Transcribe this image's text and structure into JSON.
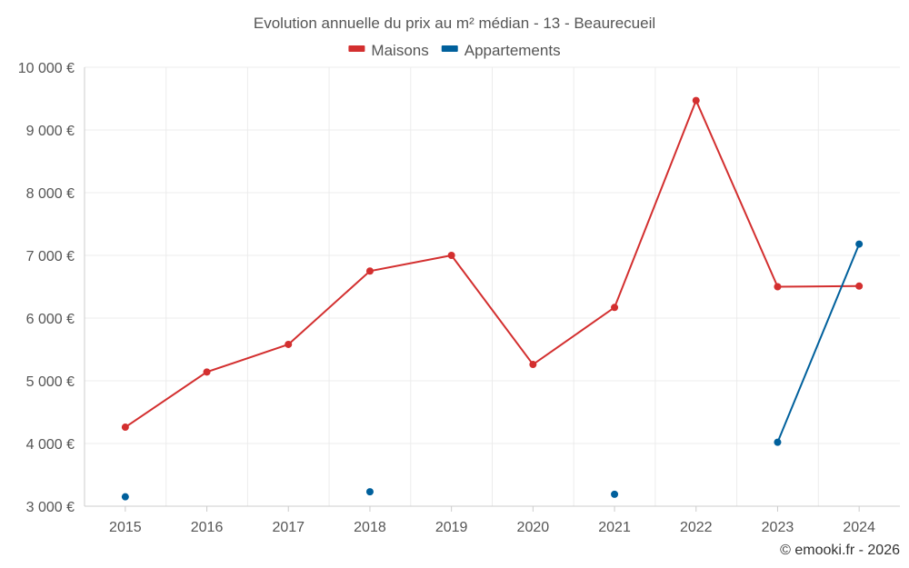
{
  "chart_data": {
    "type": "line",
    "title": "Evolution annuelle du prix au m² médian - 13 - Beaurecueil",
    "categories": [
      "2015",
      "2016",
      "2017",
      "2018",
      "2019",
      "2020",
      "2021",
      "2022",
      "2023",
      "2024"
    ],
    "series": [
      {
        "name": "Maisons",
        "color": "#d32f2f",
        "values": [
          4260,
          5140,
          5580,
          6750,
          7000,
          5260,
          6170,
          9470,
          6500,
          6510
        ]
      },
      {
        "name": "Appartements",
        "color": "#00609c",
        "values": [
          3150,
          null,
          null,
          3230,
          null,
          null,
          3190,
          null,
          4020,
          7180
        ]
      }
    ],
    "y_ticks": [
      "3 000 €",
      "4 000 €",
      "5 000 €",
      "6 000 €",
      "7 000 €",
      "8 000 €",
      "9 000 €",
      "10 000 €"
    ],
    "ylim": [
      3000,
      10000
    ],
    "grid": true,
    "legend_position": "top-center"
  },
  "credit": "© emooki.fr - 2026"
}
